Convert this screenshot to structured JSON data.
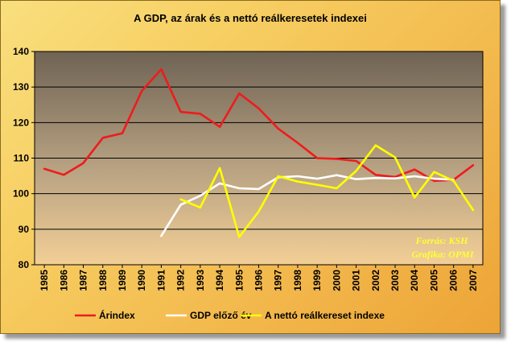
{
  "colors": {
    "series": [
      "#ee1c1c",
      "#ffffff",
      "#ffff00"
    ],
    "credit": "#ffff33"
  },
  "chart_data": {
    "type": "line",
    "title": "A GDP, az árak és a nettó reálkeresetek indexei",
    "xlabel": "",
    "ylabel": "",
    "ylim": [
      80,
      140
    ],
    "yticks": [
      80,
      90,
      100,
      110,
      120,
      130,
      140
    ],
    "grid": true,
    "legend": "bottom",
    "categories": [
      "1985",
      "1986",
      "1987",
      "1988",
      "1989",
      "1990",
      "1991",
      "1992",
      "1993",
      "1994",
      "1995",
      "1996",
      "1997",
      "1998",
      "1999",
      "2000",
      "2001",
      "2002",
      "2003",
      "2004",
      "2005",
      "2006",
      "2007"
    ],
    "series": [
      {
        "name": "Árindex",
        "values": [
          107,
          105.3,
          108.6,
          115.7,
          117,
          128.9,
          135,
          123,
          122.5,
          118.8,
          128.2,
          124,
          118.3,
          114.3,
          110,
          109.8,
          109.2,
          105.3,
          104.7,
          106.8,
          103.6,
          103.9,
          108
        ]
      },
      {
        "name": "GDP előző év",
        "values": [
          null,
          null,
          null,
          null,
          null,
          null,
          88.1,
          96.9,
          99.4,
          102.9,
          101.5,
          101.3,
          104.6,
          104.9,
          104.2,
          105.2,
          104.1,
          104.4,
          104.3,
          104.9,
          104.2,
          103.9,
          null
        ]
      },
      {
        "name": "A nettó reálkereset indexe",
        "values": [
          null,
          null,
          null,
          null,
          null,
          null,
          null,
          98.4,
          96.1,
          107.2,
          87.8,
          95,
          104.9,
          103.4,
          102.5,
          101.5,
          106.4,
          113.6,
          110.2,
          98.9,
          106.1,
          103.6,
          95.4
        ]
      }
    ],
    "annotations": [
      "Forrás: KSH",
      "Grafika: OPMI"
    ]
  }
}
